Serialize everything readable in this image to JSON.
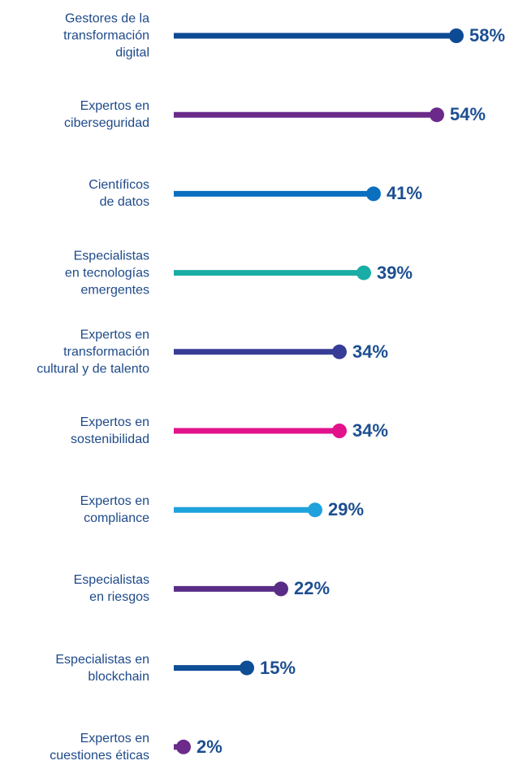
{
  "chart_data": {
    "type": "lollipop",
    "categories": [
      "Gestores de la\ntransformación\ndigital",
      "Expertos en\nciberseguridad",
      "Científicos\nde datos",
      "Especialistas\nen tecnologías\nemergentes",
      "Expertos en\ntransformación\ncultural y de talento",
      "Expertos en\nsostenibilidad",
      "Expertos en\ncompliance",
      "Especialistas\nen riesgos",
      "Especialistas en\nblockchain",
      "Expertos en\ncuestiones éticas"
    ],
    "values": [
      58,
      54,
      41,
      39,
      34,
      34,
      29,
      22,
      15,
      2
    ],
    "value_labels": [
      "58%",
      "54%",
      "41%",
      "39%",
      "34%",
      "34%",
      "29%",
      "22%",
      "15%",
      "2%"
    ],
    "colors": [
      "#0d4a94",
      "#6b2a8a",
      "#0b6fc0",
      "#19ada5",
      "#373c96",
      "#e2128b",
      "#1ea2dc",
      "#592c86",
      "#0d4e95",
      "#6c2b8b"
    ]
  }
}
